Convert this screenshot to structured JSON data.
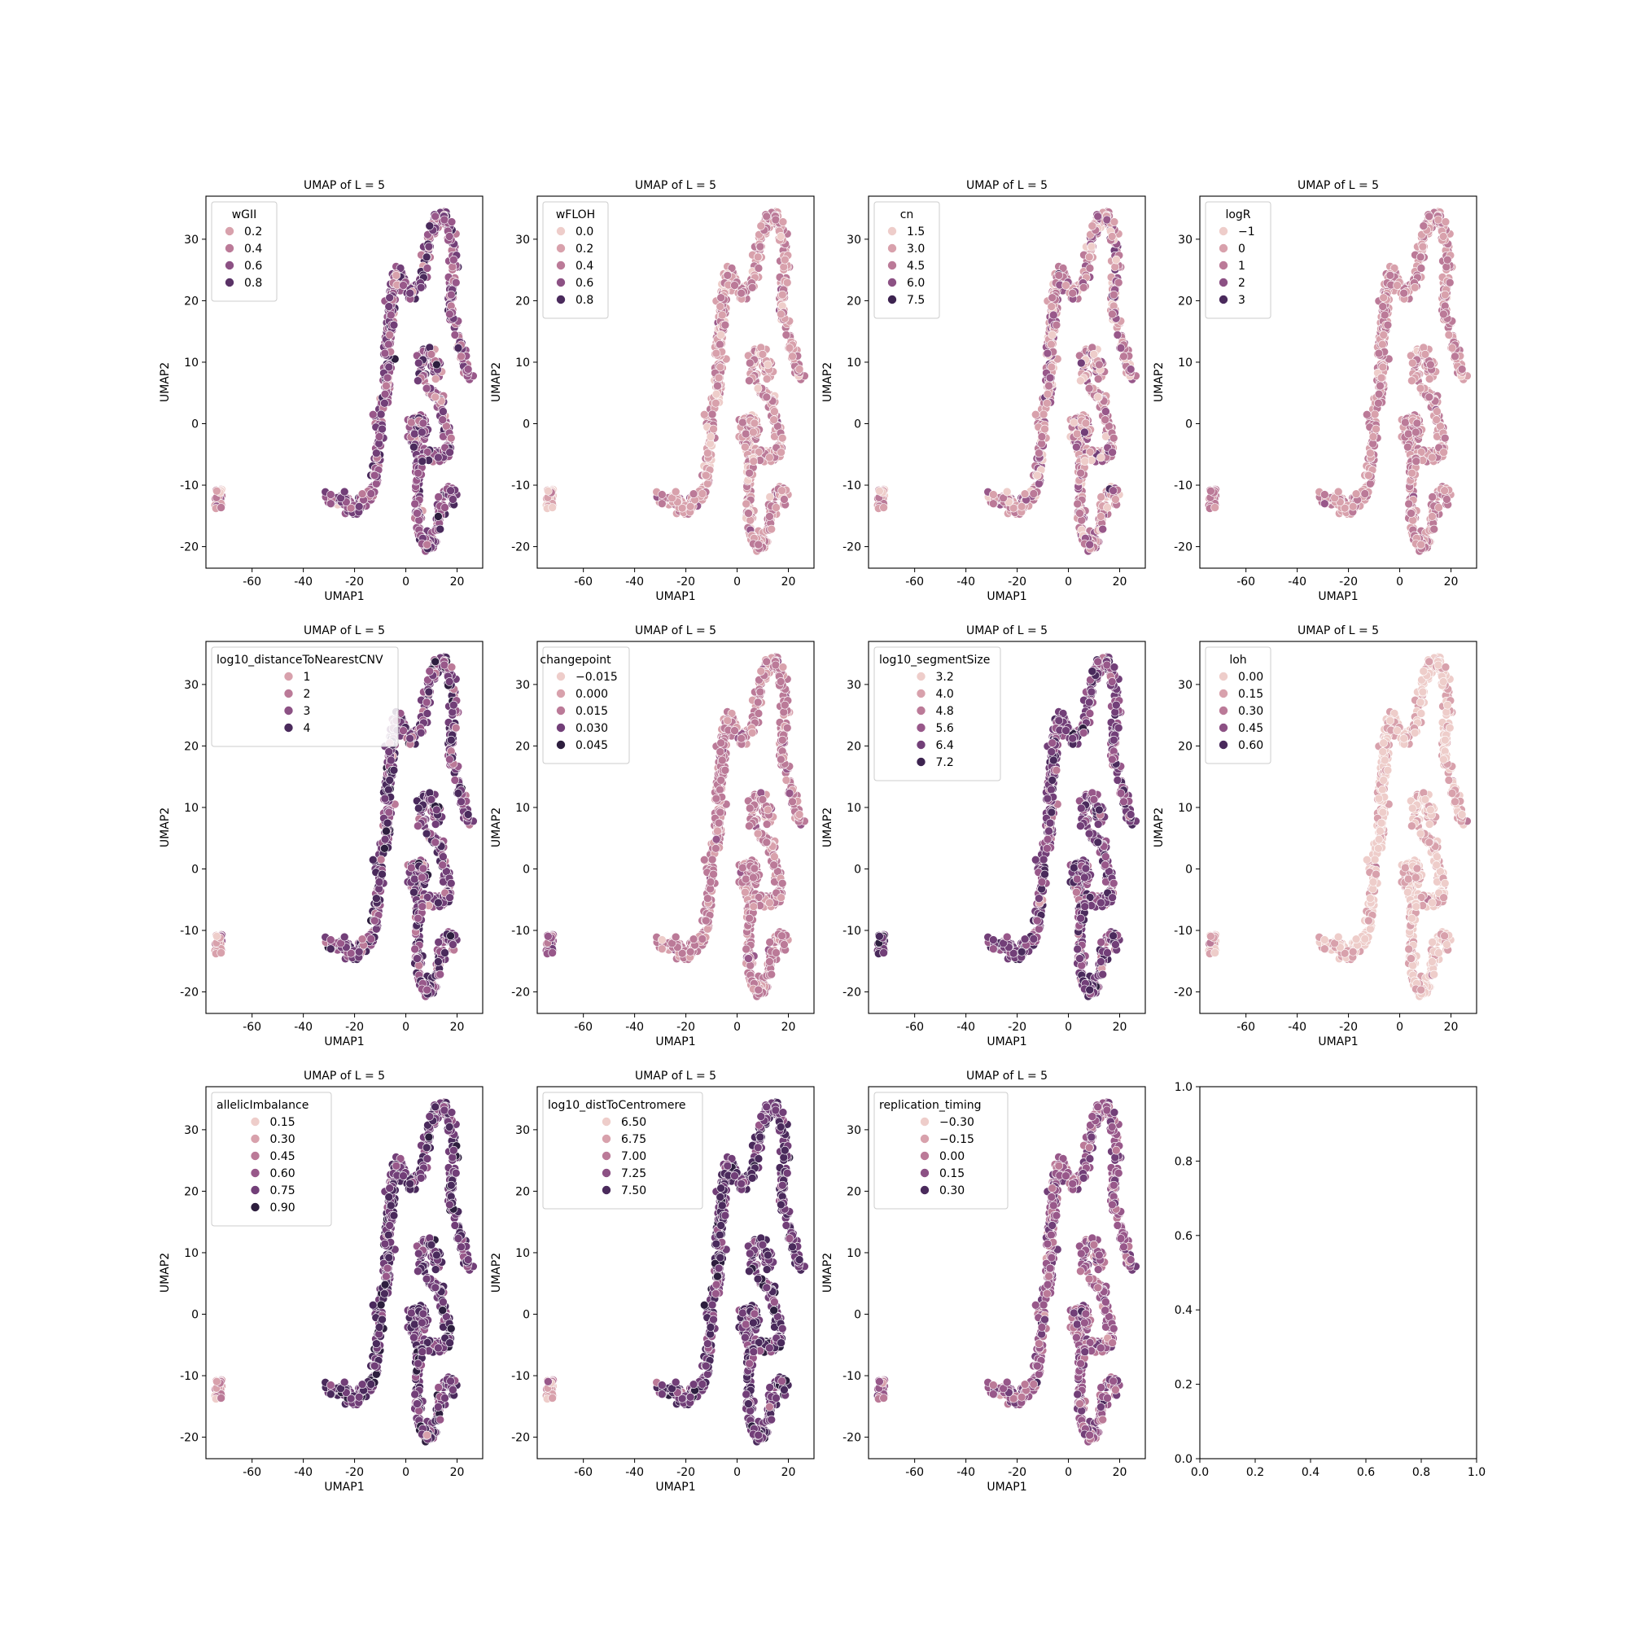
{
  "figure": {
    "rows": 3,
    "cols": 4
  },
  "palette": [
    "#eecdca",
    "#d8a1ac",
    "#bb7a98",
    "#98588a",
    "#723f78",
    "#4a2a5c",
    "#2d1e3e"
  ],
  "shape_path": [
    [
      -30,
      -12
    ],
    [
      -25,
      -12.8
    ],
    [
      -21,
      -13.6
    ],
    [
      -17,
      -13
    ],
    [
      -14,
      -11.8
    ],
    [
      -12,
      -9.5
    ],
    [
      -11,
      -6.5
    ],
    [
      -10.5,
      -3
    ],
    [
      -10.6,
      0
    ],
    [
      -10,
      2.5
    ],
    [
      -8,
      4
    ],
    [
      -7.2,
      8
    ],
    [
      -6.8,
      13
    ],
    [
      -6,
      18
    ],
    [
      -5.2,
      22
    ],
    [
      -3.8,
      24.6
    ],
    [
      -1.5,
      24
    ],
    [
      0.6,
      21.5
    ],
    [
      2.6,
      20.5
    ],
    [
      5,
      21.5
    ],
    [
      7,
      25
    ],
    [
      8.6,
      29
    ],
    [
      10.8,
      32
    ],
    [
      13.4,
      34
    ],
    [
      15.8,
      33.2
    ],
    [
      17.6,
      31
    ],
    [
      18.8,
      28
    ],
    [
      18.2,
      24
    ],
    [
      17.5,
      20
    ],
    [
      18.3,
      16.5
    ],
    [
      20.3,
      14
    ],
    [
      22.2,
      11.5
    ],
    [
      23.3,
      9
    ],
    [
      24.2,
      7.5
    ]
  ],
  "shape_s1": [
    [
      12.5,
      8
    ],
    [
      10.8,
      11.6
    ],
    [
      8,
      12.2
    ],
    [
      6.3,
      10.2
    ],
    [
      6.2,
      7.3
    ],
    [
      7.8,
      5.6
    ],
    [
      10.8,
      4.9
    ],
    [
      13.2,
      3.7
    ],
    [
      14.8,
      1.6
    ],
    [
      16,
      -1.5
    ],
    [
      16.2,
      -4.4
    ],
    [
      14.4,
      -5.4
    ],
    [
      11.5,
      -5.4
    ],
    [
      8.4,
      -4.9
    ],
    [
      5.3,
      -4.3
    ],
    [
      3.2,
      -2.9
    ],
    [
      2.4,
      -1
    ],
    [
      3,
      0.8
    ],
    [
      5,
      1.4
    ],
    [
      6.8,
      0.5
    ],
    [
      7.5,
      -1.5
    ],
    [
      6.5,
      -2.8
    ]
  ],
  "shape_s2": [
    [
      6.6,
      -5.3
    ],
    [
      5,
      -7.5
    ],
    [
      4.6,
      -10.5
    ],
    [
      4.6,
      -13.5
    ],
    [
      5.2,
      -16.5
    ],
    [
      6.5,
      -19
    ],
    [
      8.6,
      -20.3
    ],
    [
      10.6,
      -19.3
    ],
    [
      12,
      -17
    ],
    [
      13.3,
      -14.8
    ],
    [
      14.5,
      -12.5
    ],
    [
      15.8,
      -11.3
    ],
    [
      17.6,
      -11.5
    ],
    [
      19,
      -12.8
    ]
  ],
  "shape_cluster": {
    "x": [
      -74.5,
      -71.5
    ],
    "y": [
      -13.8,
      -10.5
    ]
  },
  "panels": [
    {
      "title": "UMAP of L = 5",
      "xlabel": "UMAP1",
      "ylabel": "UMAP2",
      "xlim": [
        -78,
        30
      ],
      "ylim": [
        -23.5,
        37
      ],
      "xticks": [
        "-60",
        "-40",
        "-20",
        "0",
        "20"
      ],
      "xtick_vals": [
        -60,
        -40,
        -20,
        0,
        20
      ],
      "yticks": [
        "-20",
        "-10",
        "0",
        "10",
        "20",
        "30"
      ],
      "ytick_vals": [
        -20,
        -10,
        0,
        10,
        20,
        30
      ],
      "legend": {
        "title": "wGII",
        "entries": [
          "0.2",
          "0.4",
          "0.6",
          "0.8"
        ],
        "colors": [
          "#d8a1ac",
          "#bb7a98",
          "#8c5184",
          "#5a3266"
        ]
      },
      "color_mean": 3.3,
      "color_sd": 0.95,
      "cluster_mean": 1.5
    },
    {
      "title": "UMAP of L = 5",
      "xlabel": "UMAP1",
      "ylabel": "UMAP2",
      "xlim": [
        -78,
        30
      ],
      "ylim": [
        -23.5,
        37
      ],
      "xticks": [
        "-60",
        "-40",
        "-20",
        "0",
        "20"
      ],
      "xtick_vals": [
        -60,
        -40,
        -20,
        0,
        20
      ],
      "yticks": [
        "-20",
        "-10",
        "0",
        "10",
        "20",
        "30"
      ],
      "ytick_vals": [
        -20,
        -10,
        0,
        10,
        20,
        30
      ],
      "legend": {
        "title": "wFLOH",
        "entries": [
          "0.0",
          "0.2",
          "0.4",
          "0.6",
          "0.8"
        ],
        "colors": [
          "#eecdca",
          "#d8a1ac",
          "#bb7a98",
          "#8c5184",
          "#4a2a5c"
        ]
      },
      "color_mean": 1.3,
      "color_sd": 0.7,
      "cluster_mean": 0.6
    },
    {
      "title": "UMAP of L = 5",
      "xlabel": "UMAP1",
      "ylabel": "UMAP2",
      "xlim": [
        -78,
        30
      ],
      "ylim": [
        -23.5,
        37
      ],
      "xticks": [
        "-60",
        "-40",
        "-20",
        "0",
        "20"
      ],
      "xtick_vals": [
        -60,
        -40,
        -20,
        0,
        20
      ],
      "yticks": [
        "-20",
        "-10",
        "0",
        "10",
        "20",
        "30"
      ],
      "ytick_vals": [
        -20,
        -10,
        0,
        10,
        20,
        30
      ],
      "legend": {
        "title": "cn",
        "entries": [
          "1.5",
          "3.0",
          "4.5",
          "6.0",
          "7.5"
        ],
        "colors": [
          "#eecdca",
          "#d8a1ac",
          "#bb7a98",
          "#8c5184",
          "#3d2350"
        ]
      },
      "color_mean": 1.7,
      "color_sd": 1.1,
      "cluster_mean": 1.2
    },
    {
      "title": "UMAP of L = 5",
      "xlabel": "UMAP1",
      "ylabel": "UMAP2",
      "xlim": [
        -78,
        30
      ],
      "ylim": [
        -23.5,
        37
      ],
      "xticks": [
        "-60",
        "-40",
        "-20",
        "0",
        "20"
      ],
      "xtick_vals": [
        -60,
        -40,
        -20,
        0,
        20
      ],
      "yticks": [
        "-20",
        "-10",
        "0",
        "10",
        "20",
        "30"
      ],
      "ytick_vals": [
        -20,
        -10,
        0,
        10,
        20,
        30
      ],
      "legend": {
        "title": "logR",
        "entries": [
          "−1",
          "0",
          "1",
          "2",
          "3"
        ],
        "colors": [
          "#eecdca",
          "#d8a1ac",
          "#bb7a98",
          "#8c5184",
          "#4a2a5c"
        ]
      },
      "color_mean": 1.5,
      "color_sd": 0.45,
      "cluster_mean": 1.5
    },
    {
      "title": "UMAP of L = 5",
      "xlabel": "UMAP1",
      "ylabel": "UMAP2",
      "xlim": [
        -78,
        30
      ],
      "ylim": [
        -23.5,
        37
      ],
      "xticks": [
        "-60",
        "-40",
        "-20",
        "0",
        "20"
      ],
      "xtick_vals": [
        -60,
        -40,
        -20,
        0,
        20
      ],
      "yticks": [
        "-20",
        "-10",
        "0",
        "10",
        "20",
        "30"
      ],
      "ytick_vals": [
        -20,
        -10,
        0,
        10,
        20,
        30
      ],
      "legend": {
        "title": "log10_distanceToNearestCNV",
        "entries": [
          "1",
          "2",
          "3",
          "4"
        ],
        "colors": [
          "#d8a1ac",
          "#bb7a98",
          "#8c5184",
          "#4a2a5c"
        ]
      },
      "color_mean": 3.9,
      "color_sd": 1.0,
      "cluster_mean": 1.6
    },
    {
      "title": "UMAP of L = 5",
      "xlabel": "UMAP1",
      "ylabel": "UMAP2",
      "xlim": [
        -78,
        30
      ],
      "ylim": [
        -23.5,
        37
      ],
      "xticks": [
        "-60",
        "-40",
        "-20",
        "0",
        "20"
      ],
      "xtick_vals": [
        -60,
        -40,
        -20,
        0,
        20
      ],
      "yticks": [
        "-20",
        "-10",
        "0",
        "10",
        "20",
        "30"
      ],
      "ytick_vals": [
        -20,
        -10,
        0,
        10,
        20,
        30
      ],
      "legend": {
        "title": "changepoint",
        "entries": [
          "−0.015",
          "0.000",
          "0.015",
          "0.030",
          "0.045"
        ],
        "colors": [
          "#eecdca",
          "#d8a1ac",
          "#bb7a98",
          "#723f78",
          "#2d1e3e"
        ]
      },
      "color_mean": 1.8,
      "color_sd": 0.45,
      "cluster_mean": 3.0
    },
    {
      "title": "UMAP of L = 5",
      "xlabel": "UMAP1",
      "ylabel": "UMAP2",
      "xlim": [
        -78,
        30
      ],
      "ylim": [
        -23.5,
        37
      ],
      "xticks": [
        "-60",
        "-40",
        "-20",
        "0",
        "20"
      ],
      "xtick_vals": [
        -60,
        -40,
        -20,
        0,
        20
      ],
      "yticks": [
        "-20",
        "-10",
        "0",
        "10",
        "20",
        "30"
      ],
      "ytick_vals": [
        -20,
        -10,
        0,
        10,
        20,
        30
      ],
      "legend": {
        "title": "log10_segmentSize",
        "entries": [
          "3.2",
          "4.0",
          "4.8",
          "5.6",
          "6.4",
          "7.2"
        ],
        "colors": [
          "#eecdca",
          "#d8a1ac",
          "#bb7a98",
          "#98588a",
          "#723f78",
          "#3d2350"
        ]
      },
      "color_mean": 3.8,
      "color_sd": 0.8,
      "cluster_mean": 4.5
    },
    {
      "title": "UMAP of L = 5",
      "xlabel": "UMAP1",
      "ylabel": "UMAP2",
      "xlim": [
        -78,
        30
      ],
      "ylim": [
        -23.5,
        37
      ],
      "xticks": [
        "-60",
        "-40",
        "-20",
        "0",
        "20"
      ],
      "xtick_vals": [
        -60,
        -40,
        -20,
        0,
        20
      ],
      "yticks": [
        "-20",
        "-10",
        "0",
        "10",
        "20",
        "30"
      ],
      "ytick_vals": [
        -20,
        -10,
        0,
        10,
        20,
        30
      ],
      "legend": {
        "title": "loh",
        "entries": [
          "0.00",
          "0.15",
          "0.30",
          "0.45",
          "0.60"
        ],
        "colors": [
          "#eecdca",
          "#d8a1ac",
          "#bb7a98",
          "#8c5184",
          "#4a2a5c"
        ]
      },
      "color_mean": 0.3,
      "color_sd": 0.55,
      "cluster_mean": 0.9
    },
    {
      "title": "UMAP of L = 5",
      "xlabel": "UMAP1",
      "ylabel": "UMAP2",
      "xlim": [
        -78,
        30
      ],
      "ylim": [
        -23.5,
        37
      ],
      "xticks": [
        "-60",
        "-40",
        "-20",
        "0",
        "20"
      ],
      "xtick_vals": [
        -60,
        -40,
        -20,
        0,
        20
      ],
      "yticks": [
        "-20",
        "-10",
        "0",
        "10",
        "20",
        "30"
      ],
      "ytick_vals": [
        -20,
        -10,
        0,
        10,
        20,
        30
      ],
      "legend": {
        "title": "allelicImbalance",
        "entries": [
          "0.15",
          "0.30",
          "0.45",
          "0.60",
          "0.75",
          "0.90"
        ],
        "colors": [
          "#eecdca",
          "#d8a1ac",
          "#bb7a98",
          "#98588a",
          "#723f78",
          "#2d1e3e"
        ]
      },
      "color_mean": 4.4,
      "color_sd": 0.8,
      "cluster_mean": 1.2
    },
    {
      "title": "UMAP of L = 5",
      "xlabel": "UMAP1",
      "ylabel": "UMAP2",
      "xlim": [
        -78,
        30
      ],
      "ylim": [
        -23.5,
        37
      ],
      "xticks": [
        "-60",
        "-40",
        "-20",
        "0",
        "20"
      ],
      "xtick_vals": [
        -60,
        -40,
        -20,
        0,
        20
      ],
      "yticks": [
        "-20",
        "-10",
        "0",
        "10",
        "20",
        "30"
      ],
      "ytick_vals": [
        -20,
        -10,
        0,
        10,
        20,
        30
      ],
      "legend": {
        "title": "log10_distToCentromere",
        "entries": [
          "6.50",
          "6.75",
          "7.00",
          "7.25",
          "7.50"
        ],
        "colors": [
          "#eecdca",
          "#d8a1ac",
          "#bb7a98",
          "#8c5184",
          "#4a2a5c"
        ]
      },
      "color_mean": 4.4,
      "color_sd": 0.75,
      "cluster_mean": 1.4
    },
    {
      "title": "UMAP of L = 5",
      "xlabel": "UMAP1",
      "ylabel": "UMAP2",
      "xlim": [
        -78,
        30
      ],
      "ylim": [
        -23.5,
        37
      ],
      "xticks": [
        "-60",
        "-40",
        "-20",
        "0",
        "20"
      ],
      "xtick_vals": [
        -60,
        -40,
        -20,
        0,
        20
      ],
      "yticks": [
        "-20",
        "-10",
        "0",
        "10",
        "20",
        "30"
      ],
      "ytick_vals": [
        -20,
        -10,
        0,
        10,
        20,
        30
      ],
      "legend": {
        "title": "replication_timing",
        "entries": [
          "−0.30",
          "−0.15",
          "0.00",
          "0.15",
          "0.30"
        ],
        "colors": [
          "#eecdca",
          "#d8a1ac",
          "#bb7a98",
          "#8c5184",
          "#4a2a5c"
        ]
      },
      "color_mean": 2.9,
      "color_sd": 0.7,
      "cluster_mean": 2.8
    },
    {
      "title": "",
      "xlabel": "",
      "ylabel": "",
      "empty": true,
      "xlim": [
        0,
        1
      ],
      "ylim": [
        0,
        1
      ],
      "xticks": [
        "0.0",
        "0.2",
        "0.4",
        "0.6",
        "0.8",
        "1.0"
      ],
      "xtick_vals": [
        0,
        0.2,
        0.4,
        0.6,
        0.8,
        1.0
      ],
      "yticks": [
        "0.0",
        "0.2",
        "0.4",
        "0.6",
        "0.8",
        "1.0"
      ],
      "ytick_vals": [
        0,
        0.2,
        0.4,
        0.6,
        0.8,
        1.0
      ]
    }
  ],
  "chart_data": [
    {
      "type": "scatter",
      "title": "UMAP of L = 5",
      "xlabel": "UMAP1",
      "ylabel": "UMAP2",
      "xlim": [
        -78,
        30
      ],
      "ylim": [
        -23.5,
        37
      ],
      "hue": "wGII",
      "hue_levels": [
        0.2,
        0.4,
        0.6,
        0.8
      ],
      "legend": "upper left"
    },
    {
      "type": "scatter",
      "title": "UMAP of L = 5",
      "xlabel": "UMAP1",
      "ylabel": "UMAP2",
      "xlim": [
        -78,
        30
      ],
      "ylim": [
        -23.5,
        37
      ],
      "hue": "wFLOH",
      "hue_levels": [
        0.0,
        0.2,
        0.4,
        0.6,
        0.8
      ],
      "legend": "upper left"
    },
    {
      "type": "scatter",
      "title": "UMAP of L = 5",
      "xlabel": "UMAP1",
      "ylabel": "UMAP2",
      "xlim": [
        -78,
        30
      ],
      "ylim": [
        -23.5,
        37
      ],
      "hue": "cn",
      "hue_levels": [
        1.5,
        3.0,
        4.5,
        6.0,
        7.5
      ],
      "legend": "upper left"
    },
    {
      "type": "scatter",
      "title": "UMAP of L = 5",
      "xlabel": "UMAP1",
      "ylabel": "UMAP2",
      "xlim": [
        -78,
        30
      ],
      "ylim": [
        -23.5,
        37
      ],
      "hue": "logR",
      "hue_levels": [
        -1,
        0,
        1,
        2,
        3
      ],
      "legend": "upper left"
    },
    {
      "type": "scatter",
      "title": "UMAP of L = 5",
      "xlabel": "UMAP1",
      "ylabel": "UMAP2",
      "xlim": [
        -78,
        30
      ],
      "ylim": [
        -23.5,
        37
      ],
      "hue": "log10_distanceToNearestCNV",
      "hue_levels": [
        1,
        2,
        3,
        4
      ],
      "legend": "upper left"
    },
    {
      "type": "scatter",
      "title": "UMAP of L = 5",
      "xlabel": "UMAP1",
      "ylabel": "UMAP2",
      "xlim": [
        -78,
        30
      ],
      "ylim": [
        -23.5,
        37
      ],
      "hue": "changepoint",
      "hue_levels": [
        -0.015,
        0.0,
        0.015,
        0.03,
        0.045
      ],
      "legend": "upper left"
    },
    {
      "type": "scatter",
      "title": "UMAP of L = 5",
      "xlabel": "UMAP1",
      "ylabel": "UMAP2",
      "xlim": [
        -78,
        30
      ],
      "ylim": [
        -23.5,
        37
      ],
      "hue": "log10_segmentSize",
      "hue_levels": [
        3.2,
        4.0,
        4.8,
        5.6,
        6.4,
        7.2
      ],
      "legend": "upper left"
    },
    {
      "type": "scatter",
      "title": "UMAP of L = 5",
      "xlabel": "UMAP1",
      "ylabel": "UMAP2",
      "xlim": [
        -78,
        30
      ],
      "ylim": [
        -23.5,
        37
      ],
      "hue": "loh",
      "hue_levels": [
        0.0,
        0.15,
        0.3,
        0.45,
        0.6
      ],
      "legend": "upper left"
    },
    {
      "type": "scatter",
      "title": "UMAP of L = 5",
      "xlabel": "UMAP1",
      "ylabel": "UMAP2",
      "xlim": [
        -78,
        30
      ],
      "ylim": [
        -23.5,
        37
      ],
      "hue": "allelicImbalance",
      "hue_levels": [
        0.15,
        0.3,
        0.45,
        0.6,
        0.75,
        0.9
      ],
      "legend": "upper left"
    },
    {
      "type": "scatter",
      "title": "UMAP of L = 5",
      "xlabel": "UMAP1",
      "ylabel": "UMAP2",
      "xlim": [
        -78,
        30
      ],
      "ylim": [
        -23.5,
        37
      ],
      "hue": "log10_distToCentromere",
      "hue_levels": [
        6.5,
        6.75,
        7.0,
        7.25,
        7.5
      ],
      "legend": "upper left"
    },
    {
      "type": "scatter",
      "title": "UMAP of L = 5",
      "xlabel": "UMAP1",
      "ylabel": "UMAP2",
      "xlim": [
        -78,
        30
      ],
      "ylim": [
        -23.5,
        37
      ],
      "hue": "replication_timing",
      "hue_levels": [
        -0.3,
        -0.15,
        0.0,
        0.15,
        0.3
      ],
      "legend": "upper left"
    },
    {
      "type": "scatter",
      "title": "",
      "xlim": [
        0,
        1
      ],
      "ylim": [
        0,
        1
      ],
      "empty": true
    }
  ]
}
